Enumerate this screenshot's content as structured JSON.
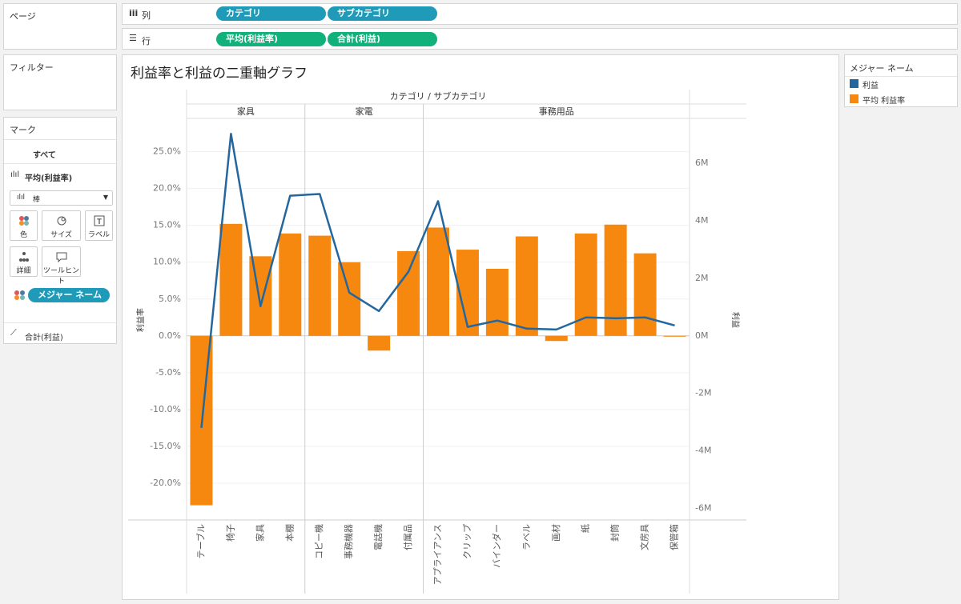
{
  "shelves": {
    "page": "ページ",
    "columns_label": "列",
    "columns": [
      "カテゴリ",
      "サブカテゴリ"
    ],
    "rows_label": "行",
    "rows": [
      "平均(利益率)",
      "合計(利益)"
    ]
  },
  "filters": "フィルター",
  "marks": {
    "title": "マーク",
    "all": "すべて",
    "measure1": "平均(利益率)",
    "mark_type": "棒",
    "buttons": [
      "色",
      "サイズ",
      "ラベル",
      "詳細",
      "ツールヒント"
    ],
    "pill": "メジャー ネーム",
    "measure2": "合計(利益)"
  },
  "legend": {
    "title": "メジャー ネーム"
  },
  "chart_data": {
    "type": "combo",
    "title": "利益率と利益の二重軸グラフ",
    "header_title": "カテゴリ / サブカテゴリ",
    "groups": [
      {
        "name": "家具",
        "categories": [
          "テーブル",
          "椅子",
          "家具",
          "本棚"
        ]
      },
      {
        "name": "家電",
        "categories": [
          "コピー機",
          "事務機器",
          "電話機",
          "付属品"
        ]
      },
      {
        "name": "事務用品",
        "categories": [
          "アプライアンス",
          "クリップ",
          "バインダー",
          "ラベル",
          "画材",
          "紙",
          "封筒",
          "文房具",
          "保管箱"
        ]
      }
    ],
    "series": [
      {
        "name": "利益",
        "type": "line",
        "axis": "y2",
        "color": "#23679e",
        "values": [
          -3200000,
          7020000,
          1030000,
          4870000,
          4930000,
          1500000,
          860000,
          2230000,
          4680000,
          310000,
          530000,
          250000,
          220000,
          640000,
          610000,
          640000,
          360000
        ]
      },
      {
        "name": "平均 利益率",
        "type": "bar",
        "color": "#f7880f",
        "values": [
          -23.0,
          15.2,
          10.8,
          13.9,
          13.6,
          10.0,
          -2.0,
          11.5,
          14.7,
          11.7,
          9.1,
          13.5,
          -0.7,
          13.9,
          15.1,
          11.2,
          -0.1
        ]
      }
    ],
    "ylabel": "利益率",
    "y2label": "利益",
    "ylim": [
      -25,
      29.3
    ],
    "yticks": [
      {
        "value": -20,
        "label": "-20.0%"
      },
      {
        "value": -15,
        "label": "-15.0%"
      },
      {
        "value": -10,
        "label": "-10.0%"
      },
      {
        "value": -5,
        "label": "-5.0%"
      },
      {
        "value": 0,
        "label": "0.0%"
      },
      {
        "value": 5,
        "label": "5.0%"
      },
      {
        "value": 10,
        "label": "10.0%"
      },
      {
        "value": 15,
        "label": "15.0%"
      },
      {
        "value": 20,
        "label": "20.0%"
      },
      {
        "value": 25,
        "label": "25.0%"
      }
    ],
    "y2lim": [
      -6400000,
      7500000
    ],
    "y2ticks": [
      {
        "value": -6000000,
        "label": "-6M"
      },
      {
        "value": -4000000,
        "label": "-4M"
      },
      {
        "value": -2000000,
        "label": "-2M"
      },
      {
        "value": 0,
        "label": "0M"
      },
      {
        "value": 2000000,
        "label": "2M"
      },
      {
        "value": 4000000,
        "label": "4M"
      },
      {
        "value": 6000000,
        "label": "6M"
      }
    ],
    "grid": true
  }
}
